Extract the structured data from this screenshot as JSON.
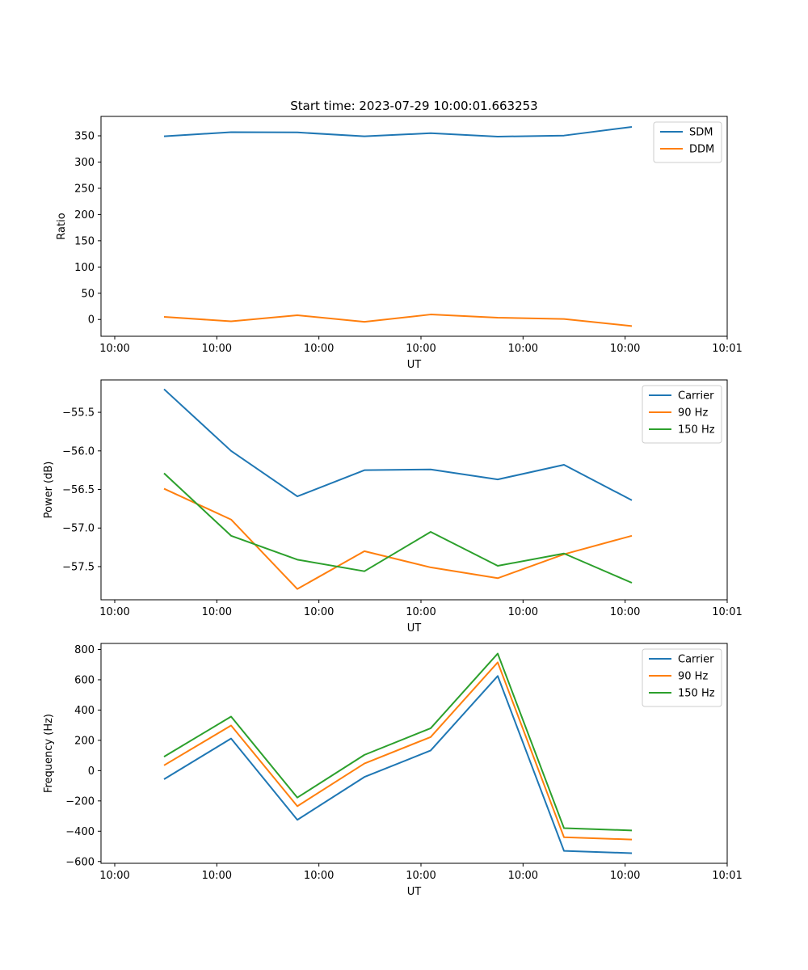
{
  "figure": {
    "title": "Start time: 2023-07-29 10:00:01.663253"
  },
  "chart_data": [
    {
      "type": "line",
      "title": "Start time: 2023-07-29 10:00:01.663253",
      "xlabel": "UT",
      "ylabel": "Ratio",
      "x_tick_labels": [
        "10:00",
        "10:00",
        "10:00",
        "10:00",
        "10:00",
        "10:00",
        "10:01"
      ],
      "x": [
        1,
        2,
        3,
        4,
        5,
        6,
        7,
        8
      ],
      "xlim": [
        0,
        10
      ],
      "ylim": [
        -32,
        387
      ],
      "y_ticks": [
        0,
        50,
        100,
        150,
        200,
        250,
        300,
        350
      ],
      "legend": "top-right",
      "series": [
        {
          "name": "SDM",
          "color": "#1f77b4",
          "values": [
            349,
            357,
            356.5,
            349,
            355,
            348.5,
            350.5,
            367
          ]
        },
        {
          "name": "DDM",
          "color": "#ff7f0e",
          "values": [
            5,
            -3.5,
            8,
            -4.5,
            9.5,
            3.5,
            1,
            -12.5
          ]
        }
      ]
    },
    {
      "type": "line",
      "title": "",
      "xlabel": "UT",
      "ylabel": "Power (dB)",
      "x_tick_labels": [
        "10:00",
        "10:00",
        "10:00",
        "10:00",
        "10:00",
        "10:00",
        "10:01"
      ],
      "x": [
        1,
        2,
        3,
        4,
        5,
        6,
        7,
        8
      ],
      "xlim": [
        0,
        10
      ],
      "ylim": [
        -57.93,
        -55.08
      ],
      "y_ticks": [
        -57.5,
        -57.0,
        -56.5,
        -56.0,
        -55.5
      ],
      "legend": "top-right",
      "series": [
        {
          "name": "Carrier",
          "color": "#1f77b4",
          "values": [
            -55.2,
            -56.0,
            -56.59,
            -56.25,
            -56.24,
            -56.37,
            -56.18,
            -56.64
          ]
        },
        {
          "name": "90 Hz",
          "color": "#ff7f0e",
          "values": [
            -56.49,
            -56.89,
            -57.79,
            -57.3,
            -57.51,
            -57.65,
            -57.34,
            -57.1
          ]
        },
        {
          "name": "150 Hz",
          "color": "#2ca02c",
          "values": [
            -56.29,
            -57.1,
            -57.41,
            -57.56,
            -57.05,
            -57.49,
            -57.33,
            -57.71
          ]
        }
      ]
    },
    {
      "type": "line",
      "title": "",
      "xlabel": "UT",
      "ylabel": "Frequency (Hz)",
      "x_tick_labels": [
        "10:00",
        "10:00",
        "10:00",
        "10:00",
        "10:00",
        "10:00",
        "10:01"
      ],
      "x": [
        1,
        2,
        3,
        4,
        5,
        6,
        7,
        8
      ],
      "xlim": [
        0,
        10
      ],
      "ylim": [
        -612,
        840
      ],
      "y_ticks": [
        -600,
        -400,
        -200,
        0,
        200,
        400,
        600,
        800
      ],
      "legend": "top-right",
      "series": [
        {
          "name": "Carrier",
          "color": "#1f77b4",
          "values": [
            -57,
            212,
            -325,
            -42,
            133,
            625,
            -530,
            -545
          ]
        },
        {
          "name": "90 Hz",
          "color": "#ff7f0e",
          "values": [
            35,
            298,
            -235,
            47,
            222,
            715,
            -440,
            -455
          ]
        },
        {
          "name": "150 Hz",
          "color": "#2ca02c",
          "values": [
            92,
            357,
            -178,
            104,
            280,
            773,
            -380,
            -395
          ]
        }
      ]
    }
  ]
}
